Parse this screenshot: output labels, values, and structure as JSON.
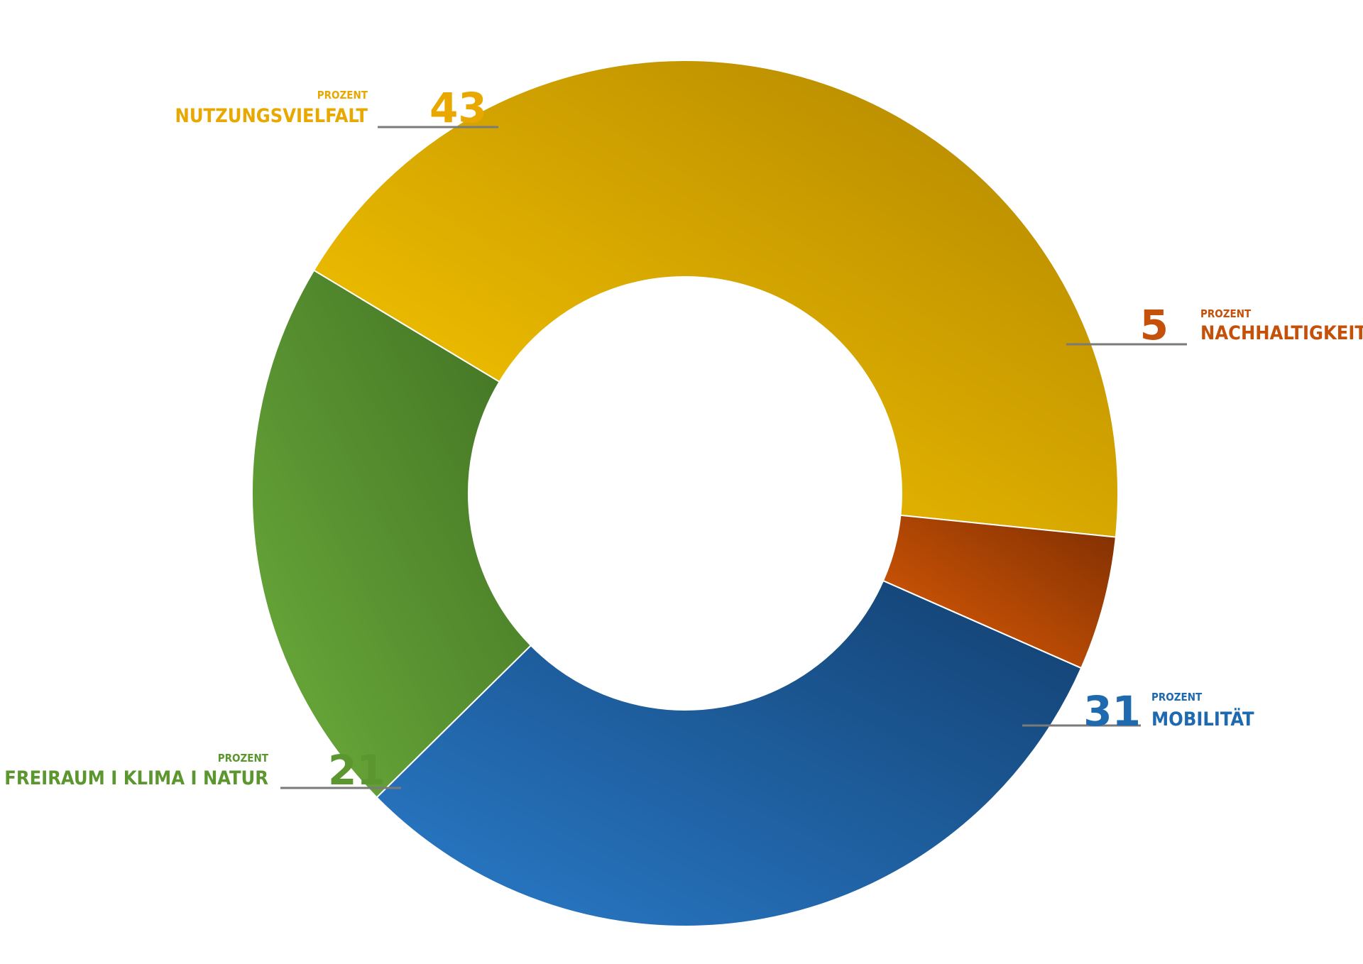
{
  "chart_data": {
    "type": "pie",
    "variant": "donut",
    "unit_label": "PROZENT",
    "slices": [
      {
        "label": "NUTZUNGSVIELFALT",
        "value": 43,
        "color": "#E8A800"
      },
      {
        "label": "NACHHALTIGKEIT",
        "value": 5,
        "color": "#C4500A"
      },
      {
        "label": "MOBILITÄT",
        "value": 31,
        "color": "#1F6AAF"
      },
      {
        "label": "FREIRAUM I KLIMA I NATUR",
        "value": 21,
        "color": "#5B962F"
      }
    ]
  }
}
